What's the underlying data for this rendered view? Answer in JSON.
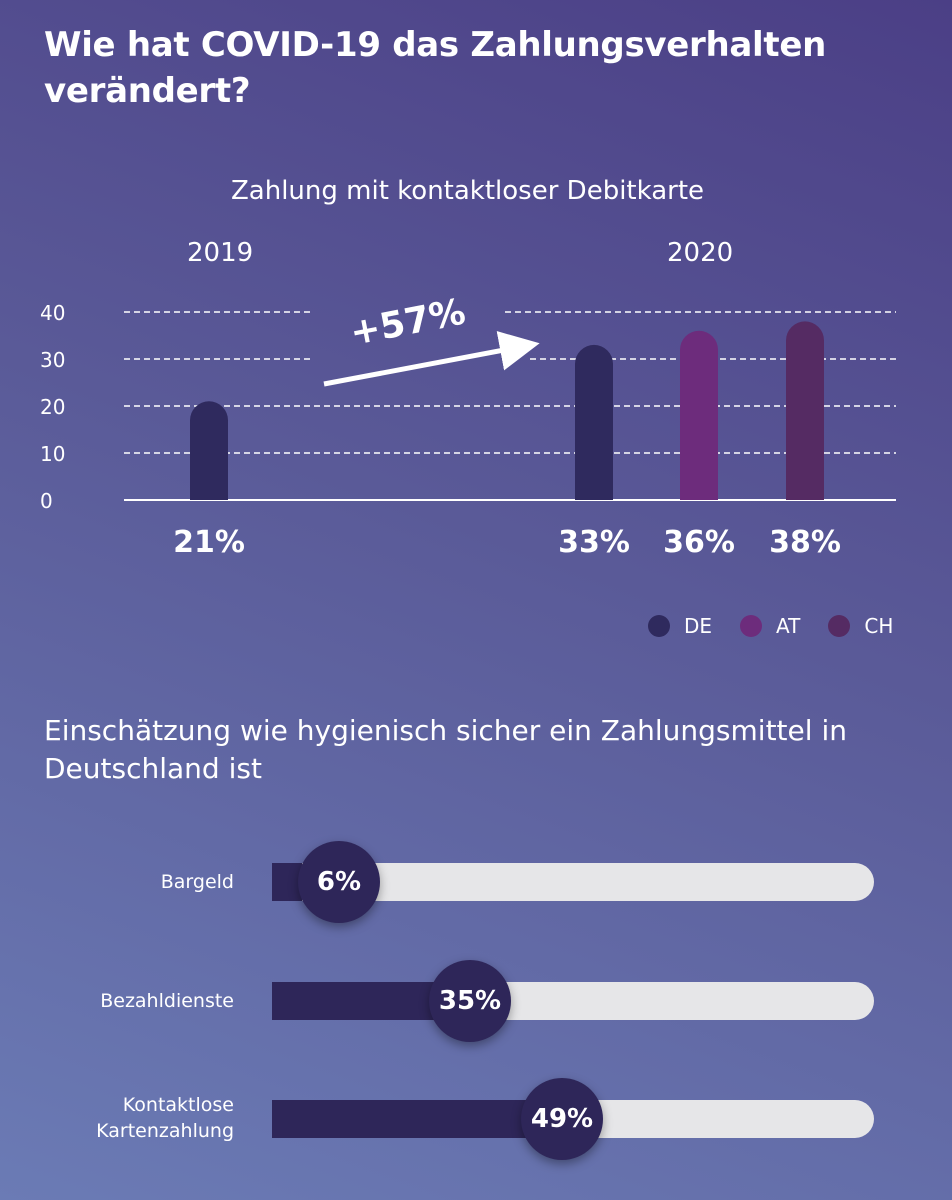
{
  "title": "Wie hat COVID-19 das Zahlungsverhalten verändert?",
  "chart_data": [
    {
      "type": "bar",
      "title": "Zahlung mit kontaktloser Debitkarte",
      "groups": [
        "2019",
        "2020"
      ],
      "bars": [
        {
          "group": "2019",
          "series": "DE",
          "value": 21,
          "label": "21%"
        },
        {
          "group": "2020",
          "series": "DE",
          "value": 33,
          "label": "33%"
        },
        {
          "group": "2020",
          "series": "AT",
          "value": 36,
          "label": "36%"
        },
        {
          "group": "2020",
          "series": "CH",
          "value": 38,
          "label": "38%"
        }
      ],
      "series": [
        {
          "name": "DE",
          "color": "#2f2a5e"
        },
        {
          "name": "AT",
          "color": "#6d2c7c"
        },
        {
          "name": "CH",
          "color": "#552b63"
        }
      ],
      "yticks": [
        "0",
        "10",
        "20",
        "30",
        "40"
      ],
      "ylim": [
        0,
        40
      ],
      "grid": true,
      "annotation": "+57%",
      "legend_position": "bottom-right"
    },
    {
      "type": "bar",
      "orientation": "horizontal",
      "title": "Einschätzung wie hygienisch sicher ein Zahlungsmittel in Deutschland ist",
      "categories": [
        "Bargeld",
        "Bezahldienste",
        "Kontaktlose Kartenzahlung"
      ],
      "values": [
        6,
        35,
        49
      ],
      "labels": [
        "6%",
        "35%",
        "49%"
      ],
      "xlim": [
        0,
        100
      ],
      "bar_color": "#2e2659",
      "track_color": "#e6e6e8"
    }
  ]
}
